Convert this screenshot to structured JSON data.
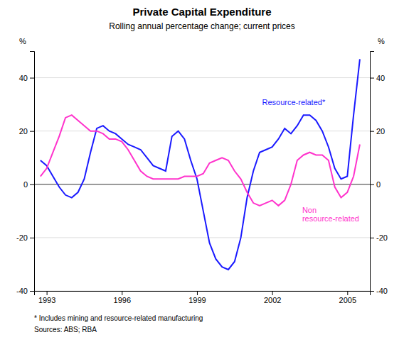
{
  "chart_data": {
    "type": "line",
    "title": "Private Capital Expenditure",
    "subtitle": "Rolling annual percentage change; current prices",
    "footnote": "*   Includes mining and resource-related manufacturing",
    "source": "Sources: ABS; RBA",
    "ylabel": "%",
    "y2label": "%",
    "xlim": [
      1992.5,
      2005.9
    ],
    "xticks": [
      1993,
      1996,
      1999,
      2002,
      2005
    ],
    "ylim": [
      -40,
      50
    ],
    "yticks": [
      -40,
      -20,
      0,
      20,
      40
    ],
    "y2lim": [
      -40,
      50
    ],
    "y2ticks": [
      -40,
      -20,
      0,
      20,
      40
    ],
    "grid": true,
    "x": [
      1992.75,
      1993.0,
      1993.25,
      1993.5,
      1993.75,
      1994.0,
      1994.25,
      1994.5,
      1994.75,
      1995.0,
      1995.25,
      1995.5,
      1995.75,
      1996.0,
      1996.25,
      1996.5,
      1996.75,
      1997.0,
      1997.25,
      1997.5,
      1997.75,
      1998.0,
      1998.25,
      1998.5,
      1998.75,
      1999.0,
      1999.25,
      1999.5,
      1999.75,
      2000.0,
      2000.25,
      2000.5,
      2000.75,
      2001.0,
      2001.25,
      2001.5,
      2001.75,
      2002.0,
      2002.25,
      2002.5,
      2002.75,
      2003.0,
      2003.25,
      2003.5,
      2003.75,
      2004.0,
      2004.25,
      2004.5,
      2004.75,
      2005.0,
      2005.25,
      2005.5
    ],
    "series": [
      {
        "color": "#1a1aff",
        "values": [
          9,
          7,
          3,
          -1,
          -4,
          -5,
          -3,
          2,
          12,
          21,
          22,
          20,
          19,
          17,
          15,
          14,
          13,
          10,
          7,
          6,
          5,
          18,
          20,
          17,
          9,
          2,
          -10,
          -22,
          -28,
          -31,
          -32,
          -29,
          -20,
          -5,
          5,
          12,
          13,
          14,
          17,
          21,
          19,
          22,
          26,
          26,
          24,
          20,
          14,
          6,
          2,
          3,
          26,
          47
        ]
      },
      {
        "color": "#ff33cc",
        "values": [
          3,
          6,
          12,
          18,
          25,
          26,
          24,
          22,
          20,
          20,
          19,
          17,
          17,
          16,
          13,
          9,
          5,
          3,
          2,
          2,
          2,
          2,
          2,
          3,
          3,
          3,
          4,
          8,
          9,
          10,
          9,
          5,
          2,
          -3,
          -7,
          -8,
          -7,
          -6,
          -8,
          -6,
          0,
          9,
          11,
          12,
          11,
          11,
          9,
          -1,
          -5,
          -3,
          3,
          15
        ]
      }
    ],
    "annotations": [
      {
        "text": "Resource-related*",
        "x": 2001.6,
        "y": 29,
        "color": "#1a1aff"
      },
      {
        "text": "Non\nresource-related",
        "x": 2003.2,
        "y": -8,
        "color": "#ff33cc"
      }
    ]
  }
}
